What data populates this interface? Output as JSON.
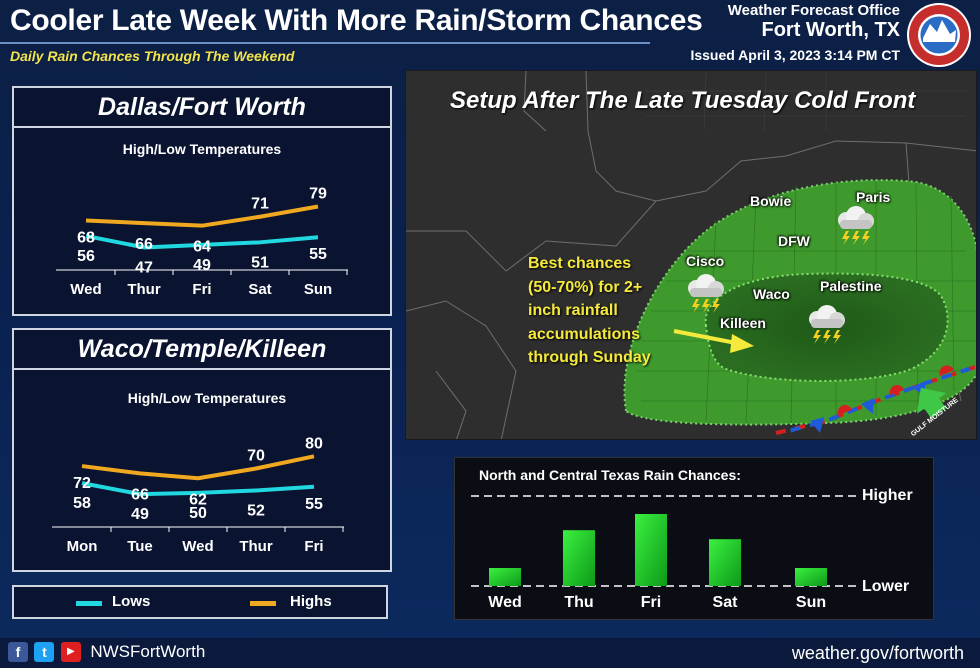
{
  "header": {
    "title": "Cooler Late Week With More Rain/Storm Chances",
    "subtitle": "Daily Rain Chances Through The Weekend",
    "office_line1": "Weather Forecast Office",
    "office_line2": "Fort Worth, TX",
    "issued": "Issued April 3, 2023 3:14 PM CT",
    "logo_icon": "noaa-nws-logo-icon"
  },
  "colors": {
    "highs": "#f0a820",
    "lows": "#21d8e0",
    "rain_bar": "#22d52a",
    "map_green": "#3f9a2e"
  },
  "legend": {
    "lows": "Lows",
    "highs": "Highs"
  },
  "chart_data": [
    {
      "type": "line",
      "panel_title": "Dallas/Fort Worth",
      "title": "High/Low Temperatures",
      "categories": [
        "Wed",
        "Thur",
        "Fri",
        "Sat",
        "Sun"
      ],
      "series": [
        {
          "name": "Highs",
          "values": [
            68,
            66,
            64,
            71,
            79
          ]
        },
        {
          "name": "Lows",
          "values": [
            56,
            47,
            49,
            51,
            55
          ]
        }
      ]
    },
    {
      "type": "line",
      "panel_title": "Waco/Temple/Killeen",
      "title": "High/Low Temperatures",
      "categories": [
        "Mon",
        "Tue",
        "Wed",
        "Thur",
        "Fri"
      ],
      "series": [
        {
          "name": "Highs",
          "values": [
            72,
            66,
            62,
            70,
            80
          ]
        },
        {
          "name": "Lows",
          "values": [
            58,
            49,
            50,
            52,
            55
          ]
        }
      ]
    },
    {
      "type": "bar",
      "title": "North and Central Texas Rain Chances:",
      "categories": [
        "Wed",
        "Thu",
        "Fri",
        "Sat",
        "Sun"
      ],
      "values": [
        0.2,
        0.62,
        0.8,
        0.52,
        0.2
      ],
      "reference_lines": [
        "Higher",
        "Lower"
      ]
    }
  ],
  "map": {
    "title": "Setup After The Late Tuesday Cold Front",
    "cities": [
      "Bowie",
      "Paris",
      "DFW",
      "Cisco",
      "Waco",
      "Palestine",
      "Killeen"
    ],
    "annotation": [
      "Best chances",
      "(50-70%) for 2+",
      "inch rainfall",
      "accumulations",
      "through Sunday"
    ],
    "storm_icon": "thunderstorm-icon",
    "moisture_label": "GULF MOISTURE"
  },
  "footer": {
    "handle": "NWSFortWorth",
    "website": "weather.gov/fortworth",
    "social_icons": [
      "facebook-icon",
      "twitter-icon",
      "youtube-icon"
    ]
  }
}
